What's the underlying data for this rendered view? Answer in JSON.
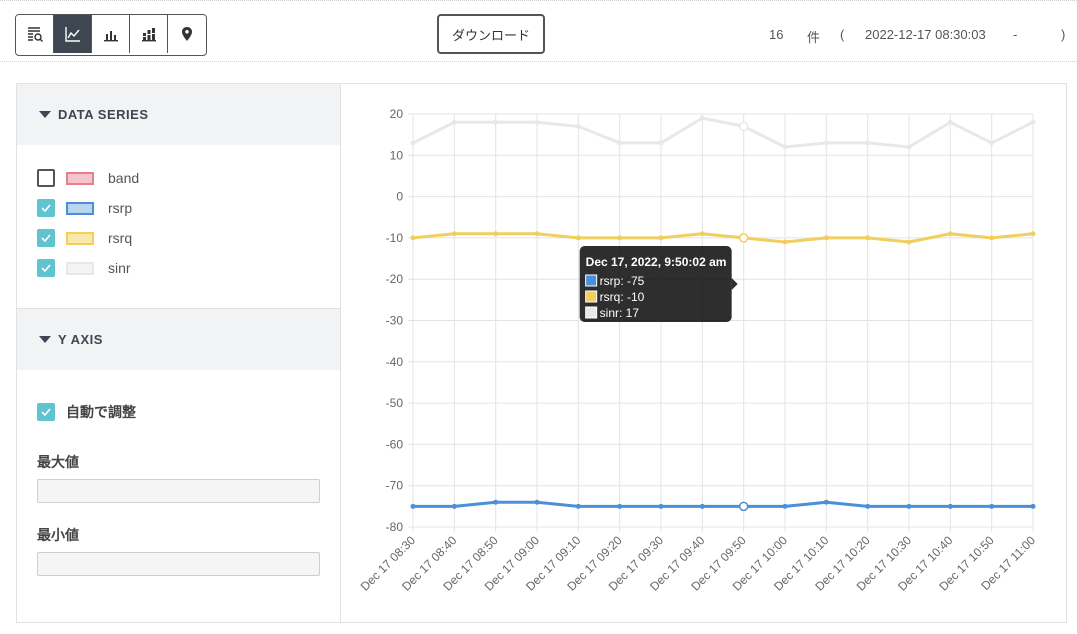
{
  "toolbar": {
    "view_buttons": [
      {
        "icon": "list-search-icon",
        "active": false
      },
      {
        "icon": "line-chart-icon",
        "active": true
      },
      {
        "icon": "bar-chart-icon",
        "active": false
      },
      {
        "icon": "stacked-bar-icon",
        "active": false
      },
      {
        "icon": "map-pin-icon",
        "active": false
      }
    ],
    "download_label": "ダウンロード",
    "count": "16",
    "count_unit": "件",
    "paren_open": "(",
    "range_start": "2022-12-17 08:30:03",
    "range_sep": "-",
    "paren_close": ")"
  },
  "sidebar": {
    "data_series_title": "DATA SERIES",
    "series": [
      {
        "label": "band",
        "checked": false,
        "color": "#e87d8d",
        "fill": "#f5c5cd"
      },
      {
        "label": "rsrp",
        "checked": true,
        "color": "#4a90d9",
        "fill": "#b9d5f0"
      },
      {
        "label": "rsrq",
        "checked": true,
        "color": "#f1cf5e",
        "fill": "#f9e8ad"
      },
      {
        "label": "sinr",
        "checked": true,
        "color": "#e8e8e8",
        "fill": "#f4f4f4"
      }
    ],
    "y_axis_title": "Y AXIS",
    "auto_adjust_label": "自動で調整",
    "auto_adjust_checked": true,
    "max_label": "最大値",
    "max_value": "",
    "min_label": "最小値",
    "min_value": ""
  },
  "colors": {
    "checkbox": "#5fc3d0",
    "active_button": "#3d4651"
  },
  "chart_data": {
    "type": "line",
    "x": [
      "Dec 17 08:30",
      "Dec 17 08:40",
      "Dec 17 08:50",
      "Dec 17 09:00",
      "Dec 17 09:10",
      "Dec 17 09:20",
      "Dec 17 09:30",
      "Dec 17 09:40",
      "Dec 17 09:50",
      "Dec 17 10:00",
      "Dec 17 10:10",
      "Dec 17 10:20",
      "Dec 17 10:30",
      "Dec 17 10:40",
      "Dec 17 10:50",
      "Dec 17 11:00"
    ],
    "ylim": [
      -80,
      20
    ],
    "yticks": [
      20,
      10,
      0,
      -10,
      -20,
      -30,
      -40,
      -50,
      -60,
      -70,
      -80
    ],
    "grid": true,
    "series": [
      {
        "name": "rsrp",
        "color": "#4a90d9",
        "values": [
          -75,
          -75,
          -74,
          -74,
          -75,
          -75,
          -75,
          -75,
          -75,
          -75,
          -74,
          -75,
          -75,
          -75,
          -75,
          -75
        ]
      },
      {
        "name": "rsrq",
        "color": "#f1cf5e",
        "values": [
          -10,
          -9,
          -9,
          -9,
          -10,
          -10,
          -10,
          -9,
          -10,
          -11,
          -10,
          -10,
          -11,
          -9,
          -10,
          -9
        ]
      },
      {
        "name": "sinr",
        "color": "#e8e8e8",
        "values": [
          13,
          18,
          18,
          18,
          17,
          13,
          13,
          19,
          17,
          12,
          13,
          13,
          12,
          18,
          13,
          18
        ]
      }
    ],
    "tooltip": {
      "title": "Dec 17, 2022, 9:50:02 am",
      "index": 8,
      "items": [
        {
          "name": "rsrp",
          "value": "-75",
          "color": "#4a90d9"
        },
        {
          "name": "rsrq",
          "value": "-10",
          "color": "#f1cf5e"
        },
        {
          "name": "sinr",
          "value": "17",
          "color": "#e8e8e8"
        }
      ]
    }
  }
}
